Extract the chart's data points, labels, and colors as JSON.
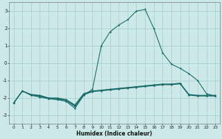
{
  "title": "",
  "xlabel": "Humidex (Indice chaleur)",
  "background_color": "#cce8e8",
  "grid_color": "#aacfcf",
  "line_color": "#1a6b6b",
  "x_ticks": [
    0,
    1,
    2,
    3,
    4,
    5,
    6,
    7,
    8,
    9,
    10,
    11,
    12,
    13,
    14,
    15,
    16,
    17,
    18,
    19,
    20,
    21,
    22,
    23
  ],
  "ylim": [
    -3.5,
    3.5
  ],
  "xlim": [
    -0.5,
    23.5
  ],
  "yticks": [
    -3,
    -2,
    -1,
    0,
    1,
    2,
    3
  ],
  "series1_y": [
    -2.3,
    -1.6,
    -1.8,
    -1.85,
    -2.0,
    -2.0,
    -2.1,
    -2.4,
    -1.75,
    -1.6,
    -1.55,
    -1.5,
    -1.45,
    -1.4,
    -1.35,
    -1.3,
    -1.25,
    -1.2,
    -1.2,
    -1.15,
    -1.8,
    -1.85,
    -1.85,
    -1.85
  ],
  "series2_y": [
    -2.3,
    -1.6,
    -1.82,
    -1.88,
    -2.02,
    -2.05,
    -2.12,
    -2.45,
    -1.8,
    -1.62,
    -1.57,
    -1.52,
    -1.47,
    -1.42,
    -1.37,
    -1.32,
    -1.27,
    -1.22,
    -1.22,
    -1.17,
    -1.82,
    -1.87,
    -1.87,
    -1.87
  ],
  "series3_y": [
    -2.3,
    -1.6,
    -1.84,
    -1.9,
    -2.04,
    -2.07,
    -2.14,
    -2.5,
    -1.82,
    -1.64,
    -1.59,
    -1.54,
    -1.49,
    -1.44,
    -1.39,
    -1.34,
    -1.29,
    -1.24,
    -1.24,
    -1.19,
    -1.84,
    -1.89,
    -1.89,
    -1.89
  ],
  "series_main_y": [
    -2.3,
    -1.6,
    -1.85,
    -1.95,
    -2.05,
    -2.1,
    -2.2,
    -2.6,
    -1.85,
    -1.5,
    1.0,
    1.8,
    2.2,
    2.5,
    3.0,
    3.1,
    2.0,
    0.6,
    -0.05,
    -0.3,
    -0.6,
    -1.0,
    -1.75,
    -1.9
  ]
}
